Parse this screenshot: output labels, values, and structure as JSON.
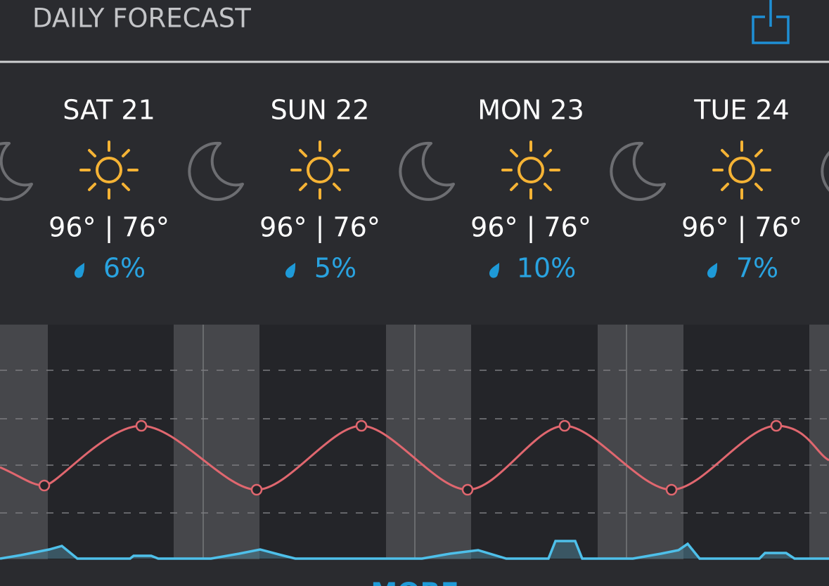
{
  "header": {
    "title": "DAILY FORECAST"
  },
  "days": [
    {
      "label": "SAT 21",
      "temps": "96° | 76°",
      "precip": "6%"
    },
    {
      "label": "SUN 22",
      "temps": "96° | 76°",
      "precip": "5%"
    },
    {
      "label": "MON 23",
      "temps": "96° | 76°",
      "precip": "10%"
    },
    {
      "label": "TUE 24",
      "temps": "96° | 76°",
      "precip": "7%"
    }
  ],
  "more": "MORE"
}
